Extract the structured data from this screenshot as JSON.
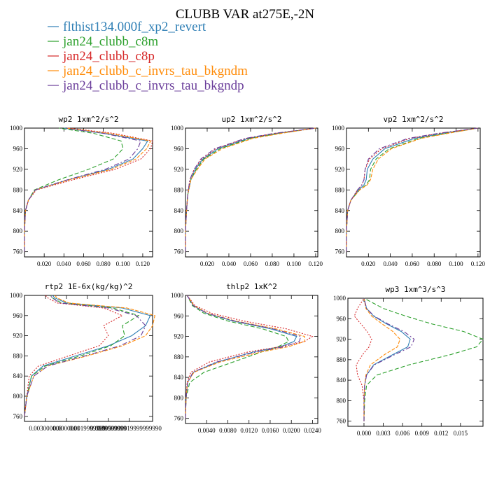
{
  "title": "CLUBB VAR at275E,-2N",
  "legend": [
    {
      "label": "flthist134.000f_xp2_revert",
      "color": "#2f7fb5"
    },
    {
      "label": "jan24_clubb_c8m",
      "color": "#2ca02c"
    },
    {
      "label": "jan24_clubb_c8p",
      "color": "#d62728"
    },
    {
      "label": "jan24_clubb_c_invrs_tau_bkgndm",
      "color": "#ff8c0a"
    },
    {
      "label": "jan24_clubb_c_invrs_tau_bkgndp",
      "color": "#6a3d9a"
    }
  ],
  "chart_data": [
    {
      "type": "line",
      "title": "wp2   1xm^2/s^2",
      "xlim": [
        0,
        0.13
      ],
      "ylim": [
        1000,
        750
      ],
      "xticks": [
        0.02,
        0.04,
        0.06,
        0.08,
        0.1,
        0.12
      ],
      "xtick_labels": [
        "0.020",
        "0.040",
        "0.060",
        "0.080",
        "0.100",
        "0.120"
      ],
      "yticks": [
        760,
        800,
        840,
        880,
        920,
        960,
        1000
      ],
      "y": [
        760,
        800,
        840,
        860,
        880,
        900,
        920,
        940,
        960,
        975,
        990,
        1000
      ],
      "series": [
        {
          "x": [
            0,
            0,
            0.001,
            0.004,
            0.011,
            0.045,
            0.085,
            0.11,
            0.12,
            0.125,
            0.08,
            0.04
          ]
        },
        {
          "x": [
            0,
            0,
            0.001,
            0.004,
            0.01,
            0.035,
            0.065,
            0.09,
            0.1,
            0.098,
            0.07,
            0.035
          ]
        },
        {
          "x": [
            0,
            0,
            0.001,
            0.004,
            0.012,
            0.05,
            0.092,
            0.118,
            0.128,
            0.13,
            0.09,
            0.045
          ]
        },
        {
          "x": [
            0,
            0,
            0.001,
            0.004,
            0.011,
            0.046,
            0.088,
            0.113,
            0.124,
            0.128,
            0.085,
            0.042
          ]
        },
        {
          "x": [
            0,
            0,
            0.001,
            0.004,
            0.011,
            0.044,
            0.082,
            0.106,
            0.115,
            0.118,
            0.08,
            0.04
          ]
        }
      ]
    },
    {
      "type": "line",
      "title": "up2   1xm^2/s^2",
      "xlim": [
        0,
        0.122
      ],
      "ylim": [
        1000,
        750
      ],
      "xticks": [
        0.02,
        0.04,
        0.06,
        0.08,
        0.1,
        0.12
      ],
      "xtick_labels": [
        "0.020",
        "0.040",
        "0.060",
        "0.080",
        "0.100",
        "0.120"
      ],
      "yticks": [
        760,
        800,
        840,
        880,
        920,
        960,
        1000
      ],
      "y": [
        760,
        800,
        840,
        870,
        900,
        920,
        940,
        960,
        980,
        990,
        1000
      ],
      "series": [
        {
          "x": [
            0,
            0,
            0.001,
            0.002,
            0.005,
            0.009,
            0.016,
            0.03,
            0.058,
            0.085,
            0.12
          ]
        },
        {
          "x": [
            0,
            0,
            0.001,
            0.002,
            0.005,
            0.01,
            0.017,
            0.032,
            0.06,
            0.087,
            0.12
          ]
        },
        {
          "x": [
            0,
            0,
            0.001,
            0.002,
            0.004,
            0.008,
            0.015,
            0.028,
            0.056,
            0.083,
            0.12
          ]
        },
        {
          "x": [
            0,
            0,
            0.001,
            0.002,
            0.005,
            0.011,
            0.018,
            0.034,
            0.062,
            0.089,
            0.12
          ]
        },
        {
          "x": [
            0,
            0,
            0.001,
            0.002,
            0.004,
            0.008,
            0.014,
            0.027,
            0.055,
            0.082,
            0.12
          ]
        }
      ]
    },
    {
      "type": "line",
      "title": "vp2   1xm^2/s^2",
      "xlim": [
        0,
        0.122
      ],
      "ylim": [
        1000,
        750
      ],
      "xticks": [
        0.02,
        0.04,
        0.06,
        0.08,
        0.1,
        0.12
      ],
      "xtick_labels": [
        "0.020",
        "0.040",
        "0.060",
        "0.080",
        "0.100",
        "0.120"
      ],
      "yticks": [
        760,
        800,
        840,
        880,
        920,
        960,
        1000
      ],
      "y": [
        760,
        800,
        840,
        860,
        880,
        890,
        900,
        920,
        940,
        960,
        980,
        990,
        1000
      ],
      "series": [
        {
          "x": [
            0,
            0,
            0.001,
            0.004,
            0.011,
            0.016,
            0.018,
            0.019,
            0.024,
            0.035,
            0.062,
            0.088,
            0.12
          ]
        },
        {
          "x": [
            0,
            0,
            0.001,
            0.004,
            0.012,
            0.018,
            0.021,
            0.022,
            0.027,
            0.039,
            0.066,
            0.091,
            0.12
          ]
        },
        {
          "x": [
            0,
            0,
            0.001,
            0.004,
            0.01,
            0.014,
            0.016,
            0.017,
            0.021,
            0.032,
            0.058,
            0.085,
            0.12
          ]
        },
        {
          "x": [
            0,
            0,
            0.001,
            0.004,
            0.012,
            0.019,
            0.022,
            0.024,
            0.029,
            0.041,
            0.068,
            0.093,
            0.12
          ]
        },
        {
          "x": [
            0,
            0,
            0.001,
            0.004,
            0.01,
            0.014,
            0.016,
            0.017,
            0.02,
            0.03,
            0.056,
            0.084,
            0.12
          ]
        }
      ]
    },
    {
      "type": "line",
      "title": "rtp2   1E-6x(kg/kg)^2",
      "xlim": [
        0,
        0.0055
      ],
      "ylim": [
        1000,
        750
      ],
      "xticks": [
        0.0009,
        0.0018,
        0.0027,
        0.0036,
        0.0045
      ],
      "xtick_labels": [
        "0.003000000",
        "0.0000001",
        "0.0019999999",
        "0.0039999999",
        "0.0050000019999999990"
      ],
      "yticks": [
        760,
        800,
        840,
        880,
        920,
        960,
        1000
      ],
      "y": [
        760,
        800,
        840,
        860,
        880,
        900,
        920,
        940,
        960,
        975,
        985,
        995,
        1000
      ],
      "series": [
        {
          "x": [
            0,
            0.0001,
            0.0003,
            0.0008,
            0.0022,
            0.0036,
            0.0046,
            0.0052,
            0.0054,
            0.0042,
            0.0018,
            0.0013,
            0.0012
          ]
        },
        {
          "x": [
            0,
            0.0001,
            0.0003,
            0.0009,
            0.0024,
            0.0037,
            0.0043,
            0.0042,
            0.0049,
            0.0038,
            0.0016,
            0.0012,
            0.0011
          ]
        },
        {
          "x": [
            0,
            0.0001,
            0.0002,
            0.0006,
            0.0019,
            0.0032,
            0.0036,
            0.0034,
            0.0042,
            0.0034,
            0.0014,
            0.001,
            0.0009
          ]
        },
        {
          "x": [
            0,
            0.0001,
            0.0004,
            0.001,
            0.0027,
            0.0042,
            0.0052,
            0.0055,
            0.0056,
            0.0044,
            0.0019,
            0.0014,
            0.0013
          ]
        },
        {
          "x": [
            0,
            0.0001,
            0.0004,
            0.001,
            0.0026,
            0.0041,
            0.005,
            0.0052,
            0.0048,
            0.0036,
            0.0015,
            0.0012,
            0.0011
          ]
        }
      ]
    },
    {
      "type": "line",
      "title": "thlp2   1xK^2",
      "xlim": [
        0,
        0.025
      ],
      "ylim": [
        1000,
        750
      ],
      "xticks": [
        0.004,
        0.008,
        0.012,
        0.016,
        0.02,
        0.024
      ],
      "xtick_labels": [
        "0.0040",
        "0.0080",
        "0.0120",
        "0.0160",
        "0.0200",
        "0.0240"
      ],
      "yticks": [
        760,
        800,
        840,
        880,
        920,
        960,
        1000
      ],
      "y": [
        760,
        800,
        830,
        850,
        870,
        890,
        900,
        910,
        920,
        935,
        950,
        965,
        980,
        1000
      ],
      "series": [
        {
          "x": [
            0,
            0.0001,
            0.0004,
            0.0015,
            0.006,
            0.013,
            0.018,
            0.0205,
            0.021,
            0.016,
            0.009,
            0.004,
            0.0015,
            0.0003
          ]
        },
        {
          "x": [
            0,
            0.0001,
            0.0008,
            0.0035,
            0.009,
            0.0145,
            0.0175,
            0.0195,
            0.019,
            0.0145,
            0.008,
            0.0035,
            0.0013,
            0.0003
          ]
        },
        {
          "x": [
            0,
            0.0001,
            0.0003,
            0.001,
            0.0045,
            0.012,
            0.018,
            0.0225,
            0.024,
            0.019,
            0.011,
            0.005,
            0.0018,
            0.0003
          ]
        },
        {
          "x": [
            0,
            0.0001,
            0.0004,
            0.0016,
            0.0065,
            0.0145,
            0.0195,
            0.0225,
            0.0225,
            0.017,
            0.0095,
            0.0042,
            0.0016,
            0.0003
          ]
        },
        {
          "x": [
            0,
            0.0001,
            0.0004,
            0.0014,
            0.0058,
            0.0135,
            0.0188,
            0.0215,
            0.0218,
            0.0165,
            0.0093,
            0.0041,
            0.0015,
            0.0003
          ]
        }
      ]
    },
    {
      "type": "line",
      "title": "wp3   1xm^3/s^3",
      "xlim": [
        -0.0025,
        0.0185
      ],
      "ylim": [
        1000,
        750
      ],
      "xticks": [
        0,
        0.003,
        0.006,
        0.009,
        0.012,
        0.015
      ],
      "xtick_labels": [
        "0.000",
        "0.003",
        "0.006",
        "0.009",
        "0.012",
        "0.015"
      ],
      "yticks": [
        760,
        800,
        840,
        880,
        920,
        960,
        1000
      ],
      "y": [
        760,
        800,
        830,
        850,
        870,
        890,
        905,
        920,
        935,
        950,
        965,
        980,
        1000
      ],
      "series": [
        {
          "x": [
            0,
            0,
            0.0001,
            0.0004,
            0.0015,
            0.0045,
            0.0068,
            0.0072,
            0.0058,
            0.0035,
            0.0015,
            0.0004,
            0
          ]
        },
        {
          "x": [
            0,
            0.0001,
            0.0004,
            0.002,
            0.007,
            0.0135,
            0.0175,
            0.0185,
            0.0155,
            0.0105,
            0.0065,
            0.003,
            0
          ]
        },
        {
          "x": [
            0,
            0,
            -0.0003,
            -0.001,
            -0.0012,
            -0.0002,
            0.0008,
            0.0012,
            0.0005,
            -0.0005,
            -0.0015,
            -0.001,
            0
          ]
        },
        {
          "x": [
            0,
            0,
            0.0001,
            0.0003,
            0.001,
            0.0032,
            0.0052,
            0.0056,
            0.0045,
            0.0028,
            0.0012,
            0.0003,
            0
          ]
        },
        {
          "x": [
            0,
            0,
            0.0001,
            0.0004,
            0.0016,
            0.0048,
            0.0073,
            0.0078,
            0.0062,
            0.0037,
            0.0016,
            0.0004,
            0
          ]
        }
      ]
    }
  ]
}
